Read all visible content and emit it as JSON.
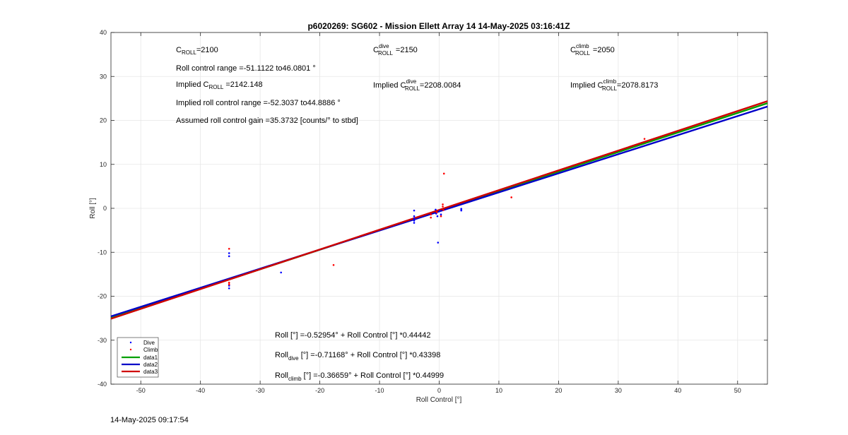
{
  "chart_data": {
    "type": "scatter",
    "title": "p6020269: SG602 - Mission Ellett Array 14 14-May-2025 03:16:41Z",
    "xlabel": "Roll Control [°]",
    "ylabel": "Roll [°]",
    "xlim": [
      -55,
      55
    ],
    "ylim": [
      -40,
      40
    ],
    "xticks": [
      -50,
      -40,
      -30,
      -20,
      -10,
      0,
      10,
      20,
      30,
      40,
      50
    ],
    "yticks": [
      -40,
      -30,
      -20,
      -10,
      0,
      10,
      20,
      30,
      40
    ],
    "grid": true,
    "legend_placement": "bottom-left",
    "series": [
      {
        "name": "Dive",
        "kind": "points",
        "color": "#0000ff",
        "points": [
          [
            -35.2,
            -10.2
          ],
          [
            -35.2,
            -10.9
          ],
          [
            -35.2,
            -17.6
          ],
          [
            -35.2,
            -18.2
          ],
          [
            -26.5,
            -14.6
          ],
          [
            -4.2,
            -0.5
          ],
          [
            -4.2,
            -1.8
          ],
          [
            -4.2,
            -2.3
          ],
          [
            -4.2,
            -2.8
          ],
          [
            -4.2,
            -3.3
          ],
          [
            -0.6,
            -0.3
          ],
          [
            -0.5,
            -1.2
          ],
          [
            -0.3,
            -1.8
          ],
          [
            -0.2,
            -7.8
          ],
          [
            0.1,
            -0.6
          ],
          [
            0.3,
            -1.4
          ],
          [
            3.7,
            -0.1
          ],
          [
            3.7,
            -0.3
          ],
          [
            3.7,
            -0.5
          ]
        ]
      },
      {
        "name": "Climb",
        "kind": "points",
        "color": "#ff0000",
        "points": [
          [
            -35.2,
            -9.2
          ],
          [
            -35.2,
            -16.9
          ],
          [
            -35.2,
            -17.3
          ],
          [
            -17.7,
            -12.9
          ],
          [
            -1.4,
            -1.4
          ],
          [
            -1.4,
            -2.1
          ],
          [
            -0.4,
            -0.9
          ],
          [
            0.3,
            -1.8
          ],
          [
            0.6,
            0.9
          ],
          [
            0.6,
            0.4
          ],
          [
            0.7,
            -0.4
          ],
          [
            0.8,
            7.9
          ],
          [
            12.1,
            2.5
          ],
          [
            34.4,
            15.8
          ]
        ]
      },
      {
        "name": "data1",
        "kind": "line",
        "color": "#00a000",
        "intercept": -0.52954,
        "slope": 0.44442
      },
      {
        "name": "data2",
        "kind": "line",
        "color": "#0000c8",
        "intercept": -0.71168,
        "slope": 0.43398
      },
      {
        "name": "data3",
        "kind": "line",
        "color": "#d00000",
        "intercept": -0.36659,
        "slope": 0.44999
      }
    ],
    "annotations": {
      "croll": {
        "base": "C",
        "sub": "ROLL",
        "value": "=2100"
      },
      "croll_dive": {
        "base": "C",
        "sup": "dive",
        "sub": "ROLL",
        "value": "=2150"
      },
      "croll_climb": {
        "base": "C",
        "sup": "climb",
        "sub": "ROLL",
        "value": "=2050"
      },
      "roll_range": "Roll control range =-51.1122 to46.0801 °",
      "implied_croll": {
        "prefix": "Implied C",
        "sub": "ROLL",
        "value": "=2142.148"
      },
      "implied_croll_dive": {
        "prefix": "Implied C",
        "sup": "dive",
        "sub": "ROLL",
        "value": "=2208.0084"
      },
      "implied_croll_climb": {
        "prefix": "Implied C",
        "sup": "climb",
        "sub": "ROLL",
        "value": "=2078.8173"
      },
      "implied_range": "Implied roll control range =-52.3037 to44.8886 °",
      "gain": "Assumed roll control gain =35.3732 [counts/° to stbd]",
      "fit_all": "Roll [°] =-0.52954° + Roll Control [°] *0.44442",
      "fit_dive": {
        "base": "Roll",
        "sub": "dive",
        "rest": " [°] =-0.71168° + Roll Control [°] *0.43398"
      },
      "fit_climb": {
        "base": "Roll",
        "sub": "climb",
        "rest": " [°] =-0.36659° + Roll Control [°] *0.44999"
      }
    }
  },
  "timestamp": "14-May-2025 09:17:54"
}
